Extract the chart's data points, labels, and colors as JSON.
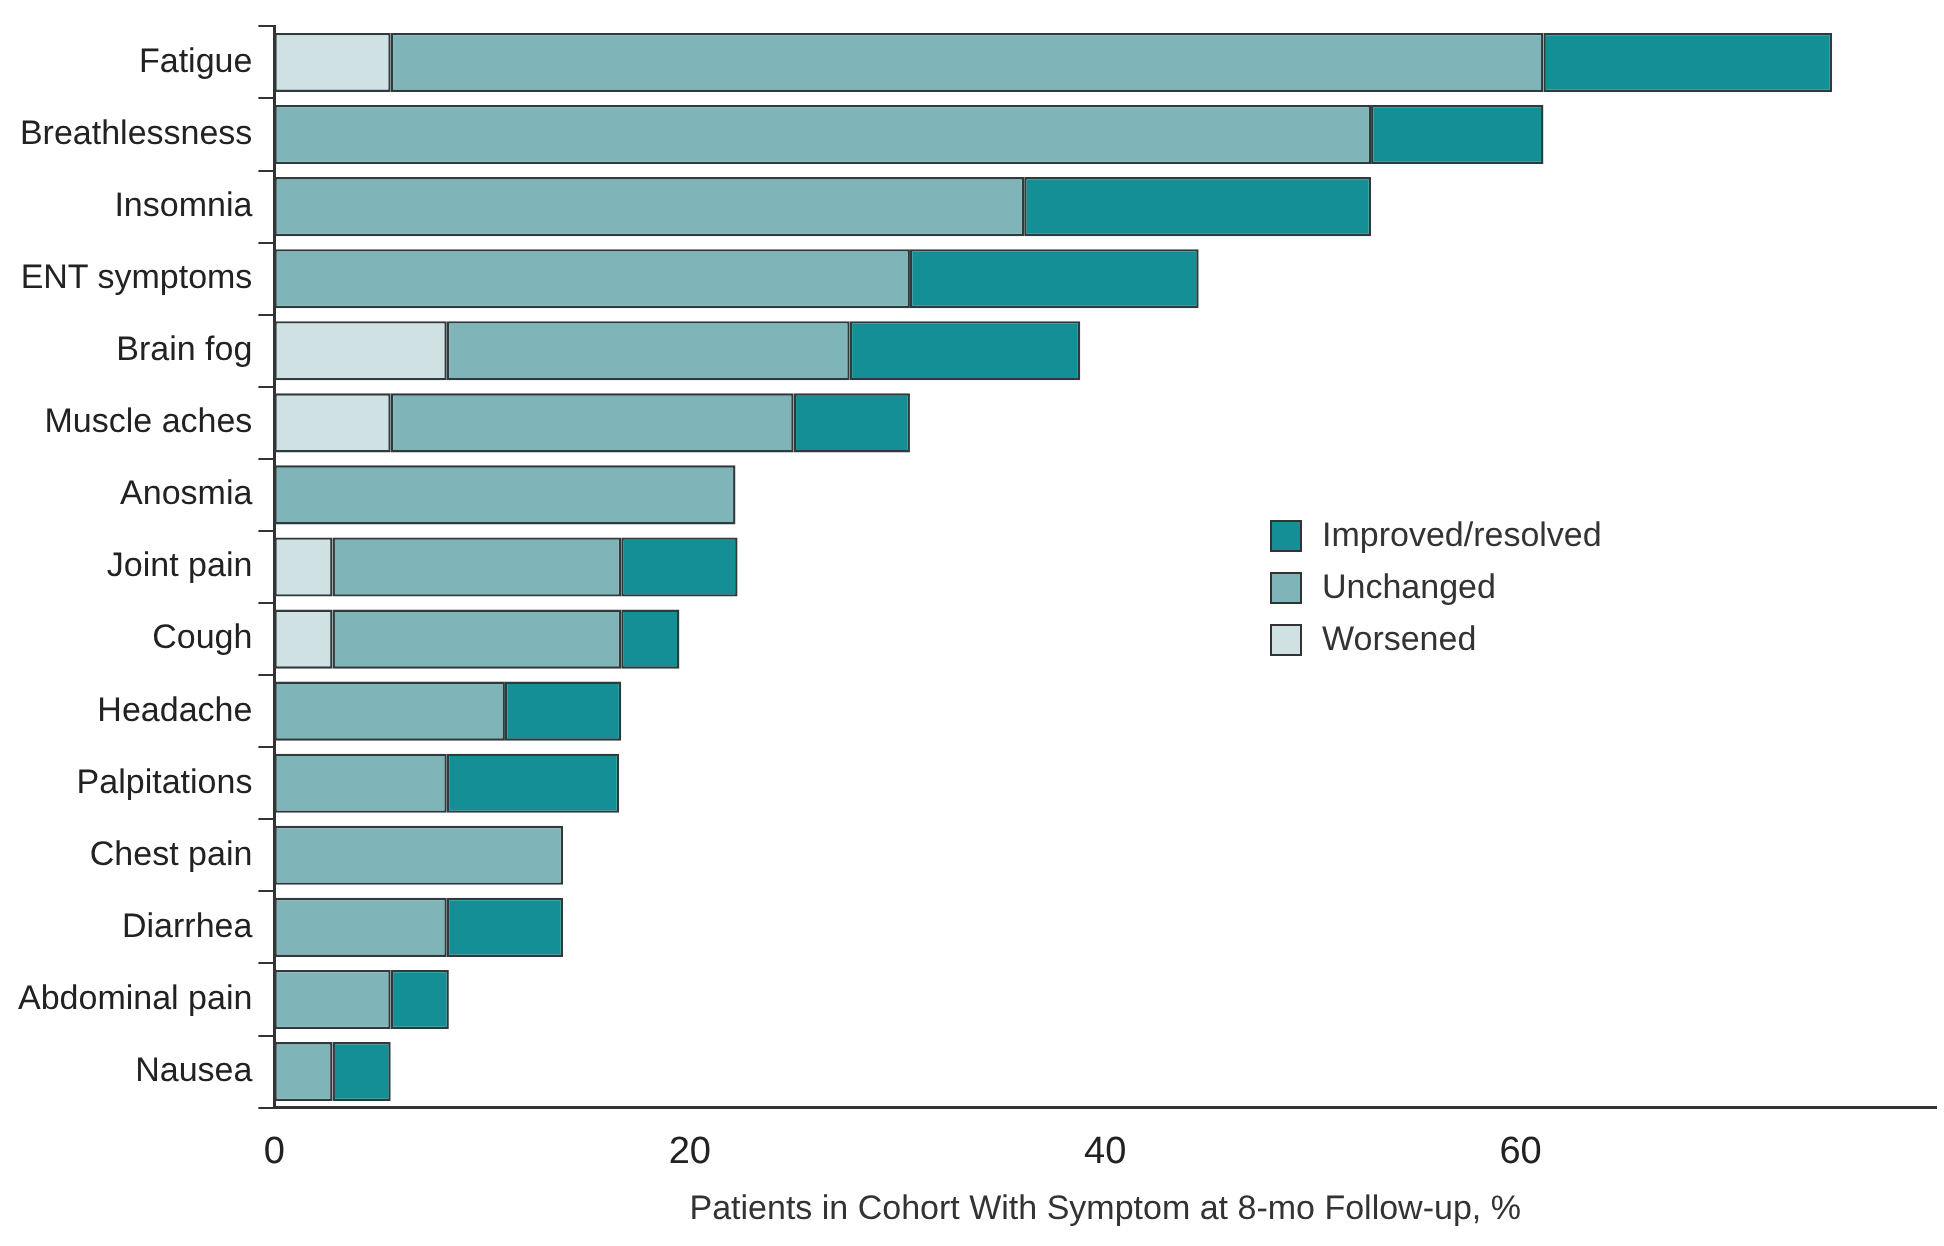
{
  "chart_data": {
    "type": "bar",
    "orientation": "horizontal",
    "stacked": true,
    "categories": [
      "Fatigue",
      "Breathlessness",
      "Insomnia",
      "ENT symptoms",
      "Brain fog",
      "Muscle aches",
      "Anosmia",
      "Joint pain",
      "Cough",
      "Headache",
      "Palpitations",
      "Chest pain",
      "Diarrhea",
      "Abdominal pain",
      "Nausea"
    ],
    "series": [
      {
        "name": "Worsened",
        "color": "#cfe1e3",
        "values": [
          5.6,
          0,
          0,
          0,
          8.3,
          5.6,
          0,
          2.8,
          2.8,
          0,
          0,
          0,
          0,
          0,
          0
        ]
      },
      {
        "name": "Unchanged",
        "color": "#7fb5b8",
        "values": [
          55.5,
          52.8,
          36.1,
          30.6,
          19.4,
          19.4,
          22.2,
          13.9,
          13.9,
          11.1,
          8.3,
          13.9,
          8.3,
          5.6,
          2.8
        ]
      },
      {
        "name": "Improved/resolved",
        "color": "#138f95",
        "values": [
          13.9,
          8.3,
          16.7,
          13.9,
          11.1,
          5.6,
          0,
          5.6,
          2.8,
          5.6,
          8.3,
          0,
          5.6,
          2.8,
          2.8
        ]
      }
    ],
    "xlim": [
      0,
      80
    ],
    "xticks": [
      0,
      20,
      40,
      60
    ],
    "xlabel": "Patients in Cohort With Symptom at 8-mo Follow-up, %",
    "grid": false,
    "legend": "right"
  }
}
